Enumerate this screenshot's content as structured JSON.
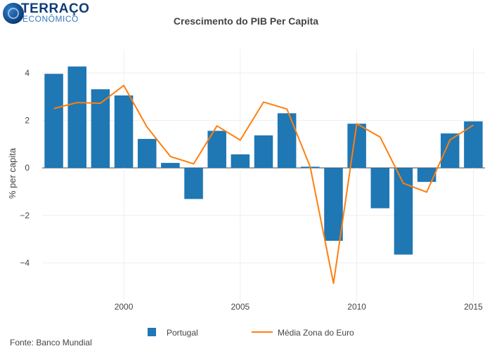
{
  "logo": {
    "name": "TERRAÇO",
    "sub": "ECONÔMICO"
  },
  "source": "Fonte: Banco Mundial",
  "colors": {
    "bar": "#1f77b4",
    "line": "#ff7f0e",
    "grid": "#eeeeee",
    "zero": "#444444"
  },
  "chart_data": {
    "type": "bar",
    "title": "Crescimento do PIB Per Capita",
    "xlabel": "",
    "ylabel": "% per capita",
    "x": [
      1997,
      1998,
      1999,
      2000,
      2001,
      2002,
      2003,
      2004,
      2005,
      2006,
      2007,
      2008,
      2009,
      2010,
      2011,
      2012,
      2013,
      2014,
      2015
    ],
    "xticks": [
      "2000",
      "2005",
      "2010",
      "2015"
    ],
    "yticks": [
      "4",
      "2",
      "0",
      "−2",
      "−4"
    ],
    "ylim": [
      -5.7,
      5.0
    ],
    "grid": true,
    "legend": "bottom",
    "series": [
      {
        "name": "Portugal",
        "type": "bar",
        "values": [
          3.96,
          4.27,
          3.31,
          3.05,
          1.22,
          0.21,
          -1.31,
          1.56,
          0.57,
          1.37,
          2.3,
          0.05,
          -3.07,
          1.86,
          -1.7,
          -3.65,
          -0.59,
          1.45,
          1.96
        ]
      },
      {
        "name": "Média Zona do Euro",
        "type": "line",
        "values": [
          2.5,
          2.75,
          2.72,
          3.47,
          1.72,
          0.48,
          0.17,
          1.77,
          1.17,
          2.77,
          2.48,
          0.05,
          -4.86,
          1.86,
          1.3,
          -0.65,
          -1.02,
          1.18,
          1.8
        ]
      }
    ]
  }
}
